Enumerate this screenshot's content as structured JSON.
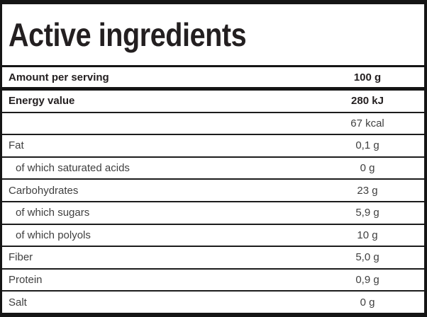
{
  "title": "Active ingredients",
  "serving_header": {
    "label": "Amount per serving",
    "value": "100 g"
  },
  "nutrition_rows": [
    {
      "label": "Energy value",
      "value": "280 kJ",
      "style": "bold"
    },
    {
      "label": "",
      "value": "67 kcal",
      "style": "regular"
    },
    {
      "label": "Fat",
      "value": "0,1 g",
      "style": "regular"
    },
    {
      "label": "of which saturated acids",
      "value": "0 g",
      "style": "indent"
    },
    {
      "label": "Carbohydrates",
      "value": "23 g",
      "style": "regular"
    },
    {
      "label": "of which sugars",
      "value": "5,9 g",
      "style": "indent"
    },
    {
      "label": "of which polyols",
      "value": "10 g",
      "style": "indent"
    },
    {
      "label": "Fiber",
      "value": "5,0 g",
      "style": "regular"
    },
    {
      "label": "Protein",
      "value": "0,9 g",
      "style": "regular"
    },
    {
      "label": "Salt",
      "value": "0 g",
      "style": "regular"
    }
  ],
  "colors": {
    "border": "#151515",
    "text_bold": "#231f20",
    "text_regular": "#3f3f3f",
    "background": "#ffffff"
  }
}
